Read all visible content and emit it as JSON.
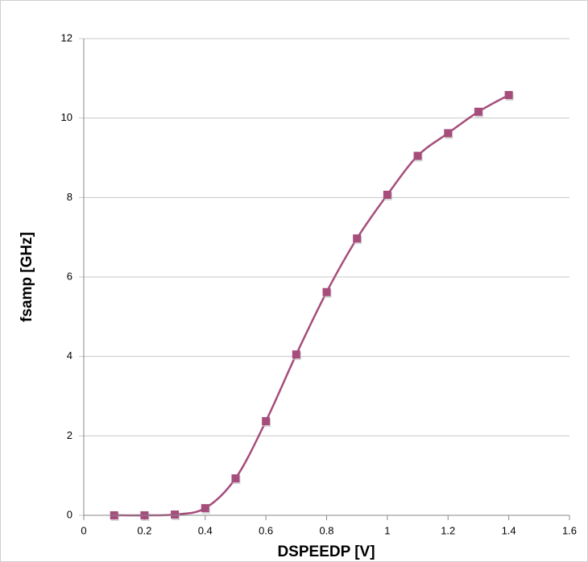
{
  "chart_data": {
    "type": "line",
    "x_label": "DSPEEDP [V]",
    "y_label": "fsamp [GHz]",
    "x": [
      0.1,
      0.2,
      0.3,
      0.4,
      0.5,
      0.6,
      0.7,
      0.8,
      0.9,
      1.0,
      1.1,
      1.2,
      1.3,
      1.4
    ],
    "series": [
      {
        "color": "#a64d7c",
        "values": [
          0,
          0,
          0.02,
          0.18,
          0.93,
          2.37,
          4.05,
          5.62,
          6.97,
          8.07,
          9.05,
          9.62,
          10.16,
          10.58
        ]
      }
    ],
    "xlim": [
      0,
      1.6
    ],
    "xticks": [
      0,
      0.2,
      0.4,
      0.6,
      0.8,
      1,
      1.2,
      1.4,
      1.6
    ],
    "ylim": [
      0,
      12
    ],
    "yticks": [
      0,
      2,
      4,
      6,
      8,
      10,
      12
    ],
    "grid": true,
    "smooth": true
  }
}
